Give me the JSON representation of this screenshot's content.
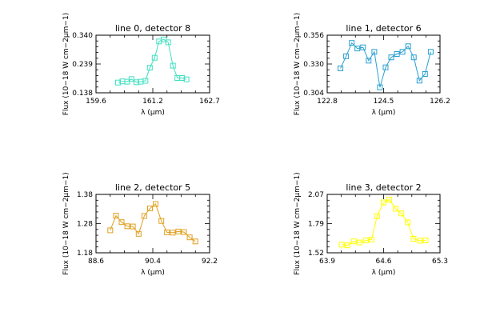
{
  "chart_data": [
    {
      "type": "line",
      "title": "line 0, detector 8",
      "xlabel": "λ (μm)",
      "ylabel": "Flux (10−18 W cm−2μm−1)",
      "xlim": [
        159.6,
        162.7
      ],
      "ylim": [
        0.138,
        0.34
      ],
      "xticks": [
        "159.6",
        "161.2",
        "162.7"
      ],
      "yticks": [
        "0.138",
        "0.239",
        "0.340"
      ],
      "color": "#40e0c0",
      "grid": false,
      "series": [
        {
          "x": [
            160.2,
            160.32,
            160.45,
            160.57,
            160.7,
            160.82,
            160.95,
            161.07,
            161.2,
            161.32,
            161.45,
            161.57,
            161.7,
            161.82,
            161.95,
            162.07
          ],
          "y": [
            0.174,
            0.178,
            0.177,
            0.186,
            0.175,
            0.177,
            0.18,
            0.226,
            0.261,
            0.318,
            0.325,
            0.315,
            0.233,
            0.19,
            0.19,
            0.185
          ]
        }
      ]
    },
    {
      "type": "line",
      "title": "line 1, detector 6",
      "xlabel": "λ (μm)",
      "ylabel": "Flux (10−18 W cm−2μm−1)",
      "xlim": [
        122.8,
        126.2
      ],
      "ylim": [
        0.304,
        0.356
      ],
      "xticks": [
        "122.8",
        "124.5",
        "126.2"
      ],
      "yticks": [
        "0.304",
        "0.330",
        "0.356"
      ],
      "color": "#2aa0d0",
      "grid": false,
      "series": [
        {
          "x": [
            123.2,
            123.37,
            123.54,
            123.71,
            123.88,
            124.05,
            124.22,
            124.39,
            124.56,
            124.73,
            124.9,
            125.07,
            125.24,
            125.41,
            125.58,
            125.75,
            125.92
          ],
          "y": [
            0.326,
            0.337,
            0.349,
            0.344,
            0.345,
            0.333,
            0.341,
            0.309,
            0.327,
            0.336,
            0.339,
            0.341,
            0.346,
            0.336,
            0.315,
            0.321,
            0.341
          ]
        }
      ]
    },
    {
      "type": "line",
      "title": "line 2, detector 5",
      "xlabel": "λ (μm)",
      "ylabel": "Flux (10−18 W cm−2μm−1)",
      "xlim": [
        88.6,
        92.2
      ],
      "ylim": [
        1.18,
        1.38
      ],
      "xticks": [
        "88.6",
        "90.4",
        "92.2"
      ],
      "yticks": [
        "1.18",
        "1.28",
        "1.38"
      ],
      "color": "#e0a020",
      "grid": false,
      "series": [
        {
          "x": [
            89.05,
            89.23,
            89.41,
            89.59,
            89.77,
            89.95,
            90.13,
            90.31,
            90.49,
            90.67,
            90.85,
            91.03,
            91.21,
            91.39,
            91.57,
            91.75
          ],
          "y": [
            1.257,
            1.307,
            1.285,
            1.271,
            1.27,
            1.245,
            1.306,
            1.332,
            1.347,
            1.289,
            1.25,
            1.249,
            1.253,
            1.251,
            1.233,
            1.219
          ]
        }
      ]
    },
    {
      "type": "line",
      "title": "line 3, detector 2",
      "xlabel": "λ (μm)",
      "ylabel": "Flux (10−18 W cm−2μm−1)",
      "xlim": [
        63.9,
        65.3
      ],
      "ylim": [
        1.52,
        2.07
      ],
      "xticks": [
        "63.9",
        "64.6",
        "65.3"
      ],
      "yticks": [
        "1.52",
        "1.79",
        "2.07"
      ],
      "color": "#ffff00",
      "grid": false,
      "series": [
        {
          "x": [
            64.08,
            64.15,
            64.23,
            64.3,
            64.38,
            64.45,
            64.52,
            64.6,
            64.67,
            64.75,
            64.82,
            64.9,
            64.97,
            65.05,
            65.12
          ],
          "y": [
            1.597,
            1.59,
            1.628,
            1.617,
            1.636,
            1.645,
            1.865,
            1.995,
            2.021,
            1.935,
            1.891,
            1.806,
            1.652,
            1.634,
            1.637
          ]
        }
      ]
    }
  ]
}
